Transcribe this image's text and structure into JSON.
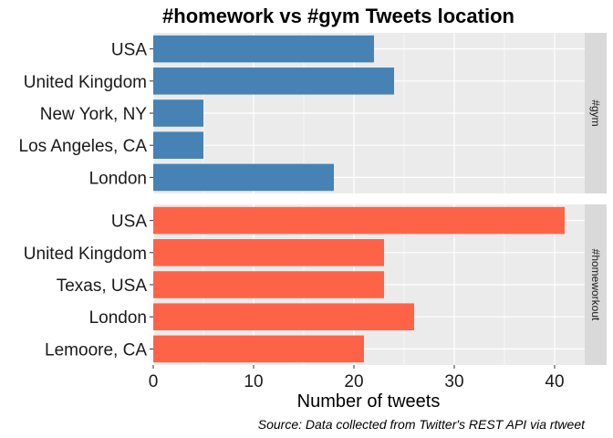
{
  "chart_data": {
    "type": "bar",
    "orientation": "horizontal",
    "title": "#homework vs #gym Tweets location",
    "xlabel": "Number of tweets",
    "ylabel": "",
    "caption": "Source: Data collected from Twitter's REST API via rtweet",
    "xlim": [
      0,
      43
    ],
    "xticks": [
      0,
      10,
      20,
      30,
      40
    ],
    "grid": true,
    "panels": [
      {
        "strip": "#gym",
        "color": "#4682B4",
        "categories": [
          "USA",
          "United Kingdom",
          "New York, NY",
          "Los Angeles, CA",
          "London"
        ],
        "values": [
          22,
          24,
          5,
          5,
          18
        ]
      },
      {
        "strip": "#homeworkout",
        "color": "#FF6347",
        "categories": [
          "USA",
          "United Kingdom",
          "Texas, USA",
          "London",
          "Lemoore, CA"
        ],
        "values": [
          41,
          23,
          23,
          26,
          21
        ]
      }
    ]
  }
}
